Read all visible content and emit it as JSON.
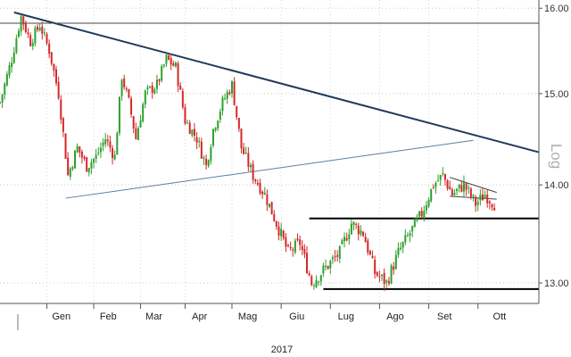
{
  "chart_data": {
    "type": "candlestick",
    "year_label": "2017",
    "scale_label": "Log",
    "y_scale": "log",
    "ylim": [
      12.8,
      16.1
    ],
    "xlim": [
      0,
      230
    ],
    "month_ticks": [
      {
        "label": "Gen",
        "t": 20
      },
      {
        "label": "Feb",
        "t": 40
      },
      {
        "label": "Mar",
        "t": 60
      },
      {
        "label": "Apr",
        "t": 79
      },
      {
        "label": "Mag",
        "t": 99
      },
      {
        "label": "Giu",
        "t": 120
      },
      {
        "label": "Lug",
        "t": 141
      },
      {
        "label": "Ago",
        "t": 162
      },
      {
        "label": "Set",
        "t": 183
      },
      {
        "label": "Ott",
        "t": 204
      }
    ],
    "yticks": [
      {
        "label": "13.00",
        "value": 13.0
      },
      {
        "label": "14.00",
        "value": 14.0
      },
      {
        "label": "15.00",
        "value": 15.0
      },
      {
        "label": "16.00",
        "value": 16.0
      }
    ],
    "colors": {
      "up": "#2ca02c",
      "down": "#d62728",
      "trendline": "#1f3a5a",
      "support": "#5e7da0",
      "level": "#000000"
    },
    "anchors": [
      [
        0,
        14.9
      ],
      [
        5,
        15.4
      ],
      [
        9,
        15.9
      ],
      [
        13,
        15.6
      ],
      [
        17,
        15.8
      ],
      [
        21,
        15.5
      ],
      [
        25,
        15.0
      ],
      [
        29,
        14.1
      ],
      [
        33,
        14.4
      ],
      [
        37,
        14.2
      ],
      [
        41,
        14.3
      ],
      [
        45,
        14.5
      ],
      [
        49,
        14.3
      ],
      [
        52,
        15.2
      ],
      [
        55,
        14.9
      ],
      [
        58,
        14.5
      ],
      [
        62,
        15.0
      ],
      [
        67,
        15.1
      ],
      [
        71,
        15.4
      ],
      [
        75,
        15.3
      ],
      [
        79,
        14.7
      ],
      [
        84,
        14.5
      ],
      [
        88,
        14.2
      ],
      [
        91,
        14.6
      ],
      [
        95,
        14.9
      ],
      [
        99,
        15.1
      ],
      [
        103,
        14.4
      ],
      [
        108,
        14.1
      ],
      [
        113,
        13.9
      ],
      [
        118,
        13.6
      ],
      [
        123,
        13.3
      ],
      [
        128,
        13.4
      ],
      [
        133,
        13.0
      ],
      [
        137,
        13.1
      ],
      [
        141,
        13.2
      ],
      [
        145,
        13.3
      ],
      [
        150,
        13.6
      ],
      [
        155,
        13.5
      ],
      [
        160,
        13.1
      ],
      [
        165,
        13.0
      ],
      [
        170,
        13.3
      ],
      [
        175,
        13.5
      ],
      [
        180,
        13.7
      ],
      [
        185,
        14.0
      ],
      [
        189,
        14.1
      ],
      [
        193,
        13.9
      ],
      [
        198,
        14.0
      ],
      [
        203,
        13.8
      ],
      [
        207,
        13.9
      ],
      [
        211,
        13.8
      ]
    ],
    "overlays": {
      "downtrend": {
        "from": [
          6,
          15.95
        ],
        "to": [
          230,
          14.35
        ]
      },
      "upper_level": {
        "y": 15.82
      },
      "support_line": {
        "from": [
          28,
          13.86
        ],
        "to": [
          202,
          14.48
        ]
      },
      "range_top": {
        "y": 13.65,
        "from": 132,
        "to": 230
      },
      "range_bottom": {
        "y": 12.94,
        "from": 138,
        "to": 230
      },
      "triangle_top": {
        "from": [
          192,
          14.08
        ],
        "to": [
          212,
          13.92
        ]
      },
      "triangle_bottom": {
        "from": [
          192,
          13.88
        ],
        "to": [
          212,
          13.85
        ]
      }
    }
  }
}
